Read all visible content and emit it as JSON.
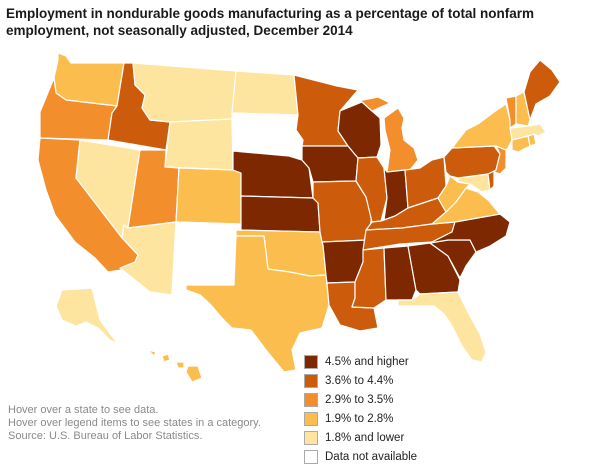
{
  "title": "Employment in nondurable goods manufacturing as a percentage of total nonfarm employment, not seasonally adjusted, December 2014",
  "categories": [
    {
      "label": "4.5% and higher",
      "color": "#7d2800"
    },
    {
      "label": "3.6% to 4.4%",
      "color": "#cc5c0c"
    },
    {
      "label": "2.9% to 3.5%",
      "color": "#f28e2c"
    },
    {
      "label": "1.9% to 2.8%",
      "color": "#fbbd4e"
    },
    {
      "label": "1.8% and lower",
      "color": "#fde5a0"
    },
    {
      "label": "Data not available",
      "color": "#ffffff"
    }
  ],
  "notes": [
    "Hover over a state to see data.",
    "Hover over legend items to see states in a category.",
    "Source: U.S. Bureau of Labor Statistics."
  ],
  "states": [
    {
      "abbr": "WA",
      "category": 3
    },
    {
      "abbr": "OR",
      "category": 2
    },
    {
      "abbr": "CA",
      "category": 2
    },
    {
      "abbr": "NV",
      "category": 4
    },
    {
      "abbr": "ID",
      "category": 1
    },
    {
      "abbr": "MT",
      "category": 4
    },
    {
      "abbr": "WY",
      "category": 4
    },
    {
      "abbr": "UT",
      "category": 2
    },
    {
      "abbr": "AZ",
      "category": 4
    },
    {
      "abbr": "CO",
      "category": 3
    },
    {
      "abbr": "NM",
      "category": 5
    },
    {
      "abbr": "ND",
      "category": 4
    },
    {
      "abbr": "SD",
      "category": 5
    },
    {
      "abbr": "NE",
      "category": 0
    },
    {
      "abbr": "KS",
      "category": 0
    },
    {
      "abbr": "OK",
      "category": 3
    },
    {
      "abbr": "TX",
      "category": 3
    },
    {
      "abbr": "MN",
      "category": 1
    },
    {
      "abbr": "IA",
      "category": 0
    },
    {
      "abbr": "MO",
      "category": 1
    },
    {
      "abbr": "AR",
      "category": 0
    },
    {
      "abbr": "LA",
      "category": 1
    },
    {
      "abbr": "WI",
      "category": 0
    },
    {
      "abbr": "IL",
      "category": 1
    },
    {
      "abbr": "MI",
      "category": 2
    },
    {
      "abbr": "IN",
      "category": 0
    },
    {
      "abbr": "OH",
      "category": 1
    },
    {
      "abbr": "KY",
      "category": 1
    },
    {
      "abbr": "TN",
      "category": 1
    },
    {
      "abbr": "MS",
      "category": 1
    },
    {
      "abbr": "AL",
      "category": 0
    },
    {
      "abbr": "GA",
      "category": 0
    },
    {
      "abbr": "FL",
      "category": 4
    },
    {
      "abbr": "SC",
      "category": 0
    },
    {
      "abbr": "NC",
      "category": 0
    },
    {
      "abbr": "VA",
      "category": 3
    },
    {
      "abbr": "WV",
      "category": 3
    },
    {
      "abbr": "MD",
      "category": 4
    },
    {
      "abbr": "DE",
      "category": 1
    },
    {
      "abbr": "PA",
      "category": 1
    },
    {
      "abbr": "NJ",
      "category": 2
    },
    {
      "abbr": "NY",
      "category": 3
    },
    {
      "abbr": "CT",
      "category": 3
    },
    {
      "abbr": "RI",
      "category": 3
    },
    {
      "abbr": "MA",
      "category": 4
    },
    {
      "abbr": "VT",
      "category": 2
    },
    {
      "abbr": "NH",
      "category": 3
    },
    {
      "abbr": "ME",
      "category": 1
    },
    {
      "abbr": "AK",
      "category": 4
    },
    {
      "abbr": "HI",
      "category": 3
    }
  ]
}
